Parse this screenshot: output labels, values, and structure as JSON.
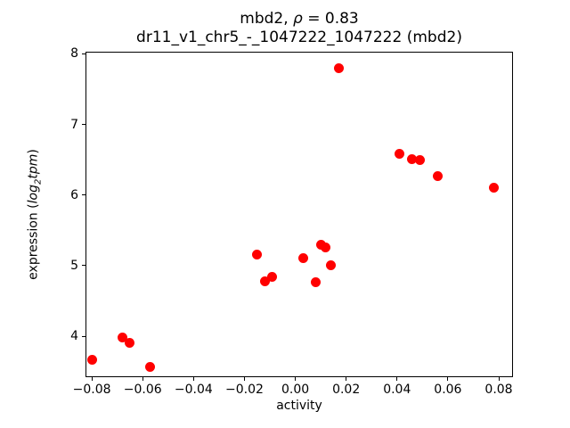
{
  "figure": {
    "background": "#ffffff",
    "frame_color": "#000000",
    "text_color": "#000000",
    "title": {
      "line1_prefix": "mbd2, ",
      "line1_rho": "ρ",
      "line1_suffix": " = 0.83",
      "line2": "dr11_v1_chr5_-_1047222_1047222 (mbd2)"
    },
    "axes": {
      "xlabel": "activity",
      "ylabel_prefix": "expression (",
      "ylabel_italic1": "log",
      "ylabel_sub": "2",
      "ylabel_italic2": "tpm",
      "ylabel_suffix": ")"
    }
  },
  "chart_data": {
    "type": "scatter",
    "title": "mbd2, ρ = 0.83",
    "subtitle": "dr11_v1_chr5_-_1047222_1047222 (mbd2)",
    "xlabel": "activity",
    "ylabel": "expression (log2tpm)",
    "grid": false,
    "xlim": [
      -0.0825,
      0.0856
    ],
    "ylim": [
      3.42,
      8.03
    ],
    "xticks": [
      {
        "value": -0.08,
        "label": "−0.08"
      },
      {
        "value": -0.06,
        "label": "−0.06"
      },
      {
        "value": -0.04,
        "label": "−0.04"
      },
      {
        "value": -0.02,
        "label": "−0.02"
      },
      {
        "value": 0.0,
        "label": "0.00"
      },
      {
        "value": 0.02,
        "label": "0.02"
      },
      {
        "value": 0.04,
        "label": "0.04"
      },
      {
        "value": 0.06,
        "label": "0.06"
      },
      {
        "value": 0.08,
        "label": "0.08"
      }
    ],
    "yticks": [
      {
        "value": 4,
        "label": "4"
      },
      {
        "value": 5,
        "label": "5"
      },
      {
        "value": 6,
        "label": "6"
      },
      {
        "value": 7,
        "label": "7"
      },
      {
        "value": 8,
        "label": "8"
      }
    ],
    "series": [
      {
        "name": "mbd2",
        "color": "#ff0000",
        "marker_diameter_px": 11,
        "points": [
          [
            -0.08,
            3.66
          ],
          [
            -0.068,
            3.98
          ],
          [
            -0.065,
            3.9
          ],
          [
            -0.057,
            3.57
          ],
          [
            -0.015,
            5.16
          ],
          [
            -0.012,
            4.78
          ],
          [
            -0.009,
            4.84
          ],
          [
            0.003,
            5.1
          ],
          [
            0.008,
            4.76
          ],
          [
            0.01,
            5.29
          ],
          [
            0.012,
            5.26
          ],
          [
            0.014,
            5.01
          ],
          [
            0.017,
            7.8
          ],
          [
            0.041,
            6.58
          ],
          [
            0.046,
            6.51
          ],
          [
            0.049,
            6.49
          ],
          [
            0.056,
            6.27
          ],
          [
            0.078,
            6.1
          ]
        ]
      }
    ]
  }
}
